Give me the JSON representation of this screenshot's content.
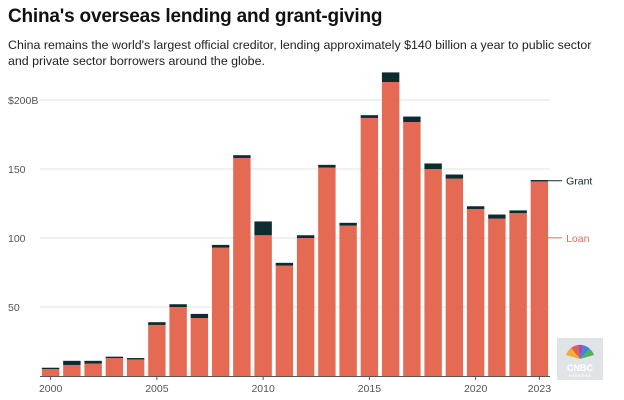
{
  "title": "China's overseas lending and grant-giving",
  "subtitle": "China remains the world's largest official creditor, lending approximately $140 billion a year to public sector and private sector borrowers around the globe.",
  "colors": {
    "loan": "#e56a54",
    "grant": "#0d2b30",
    "grid": "#e3e3e3",
    "axis": "#555555"
  },
  "logo": {
    "name": "CNBC",
    "sub": "INDONESIA"
  },
  "chart_data": {
    "type": "bar",
    "stacked": true,
    "categories": [
      "2000",
      "2001",
      "2002",
      "2003",
      "2004",
      "2005",
      "2006",
      "2007",
      "2008",
      "2009",
      "2010",
      "2011",
      "2012",
      "2013",
      "2014",
      "2015",
      "2016",
      "2017",
      "2018",
      "2019",
      "2020",
      "2021",
      "2022",
      "2023"
    ],
    "series": [
      {
        "name": "Loan",
        "values": [
          5,
          8,
          9,
          13,
          12,
          37,
          50,
          42,
          93,
          158,
          102,
          80,
          100,
          151,
          109,
          187,
          213,
          184,
          150,
          143,
          121,
          114,
          118,
          141
        ]
      },
      {
        "name": "Grant",
        "values": [
          1,
          3,
          2,
          1,
          1,
          2,
          2,
          3,
          2,
          2,
          10,
          2,
          2,
          2,
          2,
          2,
          7,
          4,
          4,
          3,
          2,
          3,
          2,
          1
        ]
      }
    ],
    "y_ticks": [
      {
        "value": 50,
        "label": "50"
      },
      {
        "value": 100,
        "label": "100"
      },
      {
        "value": 150,
        "label": "150"
      },
      {
        "value": 200,
        "label": "$200B"
      }
    ],
    "x_ticks": [
      "2000",
      "2005",
      "2010",
      "2015",
      "2020",
      "2023"
    ],
    "ylim": [
      0,
      225
    ],
    "legend": [
      {
        "name": "Grant",
        "color": "#0d2b30"
      },
      {
        "name": "Loan",
        "color": "#e56a54"
      }
    ],
    "legend_placement": "right"
  }
}
